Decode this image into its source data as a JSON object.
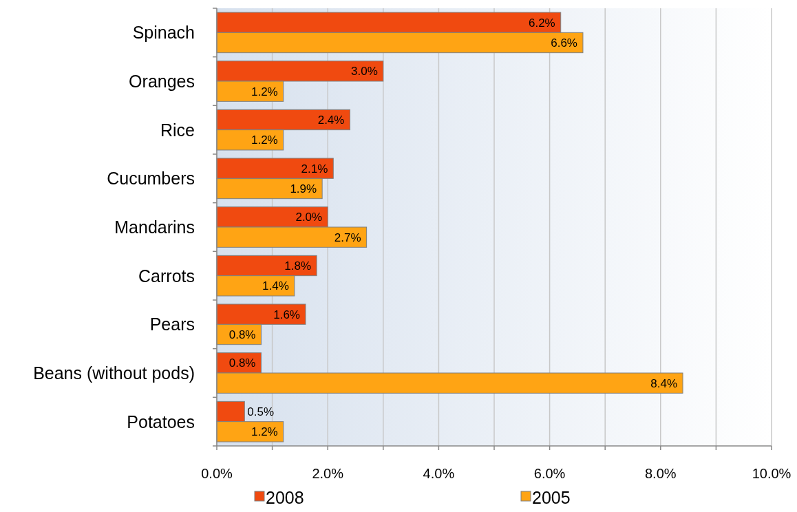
{
  "chart_data": {
    "type": "bar",
    "orientation": "horizontal",
    "categories": [
      "Spinach",
      "Oranges",
      "Rice",
      "Cucumbers",
      "Mandarins",
      "Carrots",
      "Pears",
      "Beans (without pods)",
      "Potatoes"
    ],
    "series": [
      {
        "name": "2008",
        "color": "#f04a10",
        "values": [
          6.2,
          3.0,
          2.4,
          2.1,
          2.0,
          1.8,
          1.6,
          0.8,
          0.5
        ],
        "value_labels": [
          "6.2%",
          "3.0%",
          "2.4%",
          "2.1%",
          "2.0%",
          "1.8%",
          "1.6%",
          "0.8%",
          "0.5%"
        ]
      },
      {
        "name": "2005",
        "color": "#ffa414",
        "values": [
          6.6,
          1.2,
          1.2,
          1.9,
          2.7,
          1.4,
          0.8,
          8.4,
          1.2
        ],
        "value_labels": [
          "6.6%",
          "1.2%",
          "1.2%",
          "1.9%",
          "2.7%",
          "1.4%",
          "0.8%",
          "8.4%",
          "1.2%"
        ]
      }
    ],
    "xlim": [
      0,
      10
    ],
    "xticks": [
      {
        "value": 0,
        "label": "0.0%"
      },
      {
        "value": 1,
        "label": null
      },
      {
        "value": 2,
        "label": "2.0%"
      },
      {
        "value": 3,
        "label": null
      },
      {
        "value": 4,
        "label": "4.0%"
      },
      {
        "value": 5,
        "label": null
      },
      {
        "value": 6,
        "label": "6.0%"
      },
      {
        "value": 7,
        "label": null
      },
      {
        "value": 8,
        "label": "8.0%"
      },
      {
        "value": 9,
        "label": null
      },
      {
        "value": 10,
        "label": "10.0%"
      }
    ],
    "grid": "x",
    "legend": "bottom"
  }
}
